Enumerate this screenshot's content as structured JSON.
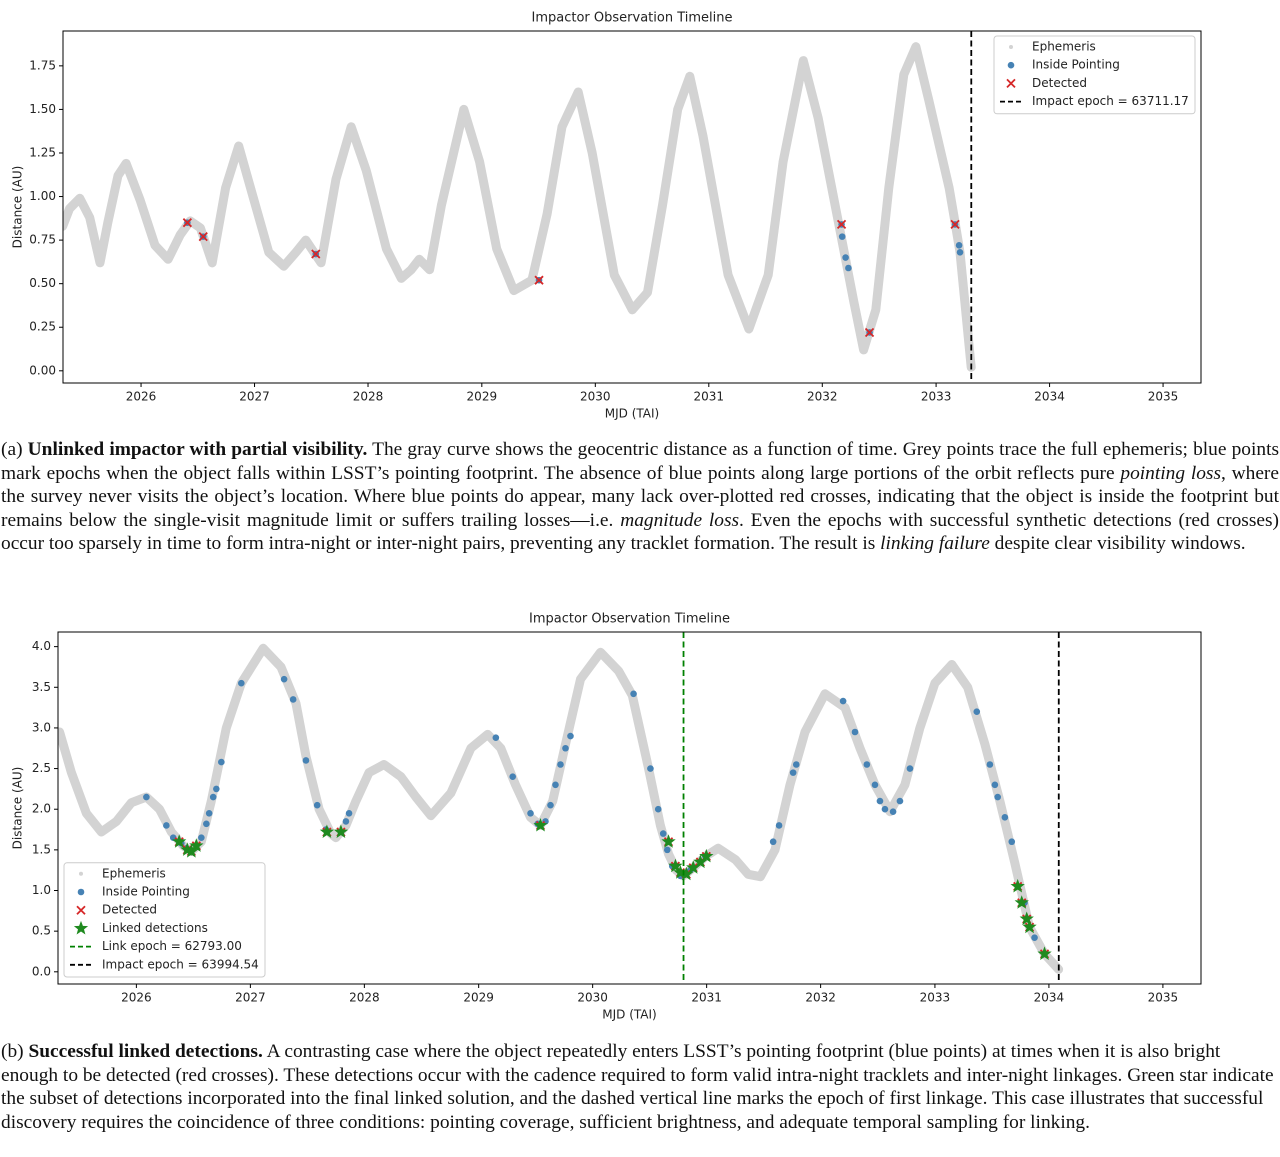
{
  "chart_data": [
    {
      "type": "scatter",
      "title": "Impactor Observation Timeline",
      "x_label": "MJD (TAI)",
      "y_label": "Distance (AU)",
      "xlim": [
        60790,
        64450
      ],
      "ylim": [
        -0.07,
        1.95
      ],
      "xticks": [
        {
          "value": 61041,
          "label": "2026"
        },
        {
          "value": 61406,
          "label": "2027"
        },
        {
          "value": 61771,
          "label": "2028"
        },
        {
          "value": 62137,
          "label": "2029"
        },
        {
          "value": 62502,
          "label": "2030"
        },
        {
          "value": 62867,
          "label": "2031"
        },
        {
          "value": 63232,
          "label": "2032"
        },
        {
          "value": 63598,
          "label": "2033"
        },
        {
          "value": 63963,
          "label": "2034"
        },
        {
          "value": 64328,
          "label": "2035"
        }
      ],
      "yticks": [
        {
          "value": 0,
          "label": "0.00"
        },
        {
          "value": 0.25,
          "label": "0.25"
        },
        {
          "value": 0.5,
          "label": "0.50"
        },
        {
          "value": 0.75,
          "label": "0.75"
        },
        {
          "value": 1,
          "label": "1.00"
        },
        {
          "value": 1.25,
          "label": "1.25"
        },
        {
          "value": 1.5,
          "label": "1.50"
        },
        {
          "value": 1.75,
          "label": "1.75"
        }
      ],
      "legend": "upper right",
      "series": [
        {
          "name": "Ephemeris",
          "color": "#d3d3d3",
          "marker": ".",
          "x": [
            60789,
            60811,
            60844,
            60876,
            60909,
            60934,
            60967,
            60993,
            61038,
            61086,
            61128,
            61167,
            61199,
            61232,
            61270,
            61313,
            61355,
            61393,
            61452,
            61500,
            61539,
            61571,
            61597,
            61620,
            61668,
            61717,
            61765,
            61830,
            61878,
            61910,
            61936,
            61969,
            62007,
            62079,
            62130,
            62185,
            62240,
            62298,
            62347,
            62395,
            62447,
            62492,
            62563,
            62621,
            62670,
            62718,
            62767,
            62806,
            62848,
            62929,
            62996,
            63058,
            63106,
            63171,
            63219,
            63284,
            63333,
            63365,
            63404,
            63446,
            63494,
            63533,
            63575,
            63640,
            63659,
            63675,
            63711
          ],
          "values": [
            0.83,
            0.93,
            0.99,
            0.88,
            0.62,
            0.85,
            1.12,
            1.19,
            0.98,
            0.72,
            0.64,
            0.78,
            0.86,
            0.82,
            0.62,
            1.05,
            1.29,
            1.05,
            0.68,
            0.6,
            0.68,
            0.75,
            0.68,
            0.62,
            1.1,
            1.4,
            1.15,
            0.7,
            0.53,
            0.58,
            0.64,
            0.58,
            0.95,
            1.5,
            1.2,
            0.7,
            0.46,
            0.52,
            0.9,
            1.4,
            1.6,
            1.25,
            0.55,
            0.35,
            0.45,
            0.95,
            1.5,
            1.69,
            1.35,
            0.55,
            0.24,
            0.55,
            1.2,
            1.78,
            1.45,
            0.85,
            0.4,
            0.12,
            0.35,
            1.05,
            1.7,
            1.86,
            1.55,
            1.05,
            0.85,
            0.68,
            0.02
          ]
        },
        {
          "name": "Inside Pointing",
          "color": "#4682b4",
          "marker": "o",
          "x": [
            61190,
            61241,
            61603,
            62321,
            63294,
            63296,
            63307,
            63316,
            63384,
            63659,
            63672,
            63675
          ],
          "values": [
            0.85,
            0.77,
            0.67,
            0.52,
            0.84,
            0.77,
            0.65,
            0.59,
            0.22,
            0.84,
            0.72,
            0.68
          ]
        },
        {
          "name": "Detected",
          "color": "#d62728",
          "marker": "x",
          "x": [
            61190,
            61241,
            61603,
            62321,
            63294,
            63384,
            63659
          ],
          "values": [
            0.85,
            0.77,
            0.67,
            0.52,
            0.84,
            0.22,
            0.84
          ]
        }
      ],
      "vlines": [
        {
          "label": "Impact epoch = 63711.17",
          "value": 63711.17,
          "color": "#000000",
          "style": "dashed"
        }
      ]
    },
    {
      "type": "scatter",
      "title": "Impactor Observation Timeline",
      "x_label": "MJD (TAI)",
      "y_label": "Distance (AU)",
      "xlim": [
        60790,
        64450
      ],
      "ylim": [
        -0.15,
        4.18
      ],
      "xticks": [
        {
          "value": 61041,
          "label": "2026"
        },
        {
          "value": 61406,
          "label": "2027"
        },
        {
          "value": 61771,
          "label": "2028"
        },
        {
          "value": 62137,
          "label": "2029"
        },
        {
          "value": 62502,
          "label": "2030"
        },
        {
          "value": 62867,
          "label": "2031"
        },
        {
          "value": 63232,
          "label": "2032"
        },
        {
          "value": 63598,
          "label": "2033"
        },
        {
          "value": 63963,
          "label": "2034"
        },
        {
          "value": 64328,
          "label": "2035"
        }
      ],
      "yticks": [
        {
          "value": 0,
          "label": "0.0"
        },
        {
          "value": 0.5,
          "label": "0.5"
        },
        {
          "value": 1,
          "label": "1.0"
        },
        {
          "value": 1.5,
          "label": "1.5"
        },
        {
          "value": 2,
          "label": "2.0"
        },
        {
          "value": 2.5,
          "label": "2.5"
        },
        {
          "value": 3,
          "label": "3.0"
        },
        {
          "value": 3.5,
          "label": "3.5"
        },
        {
          "value": 4,
          "label": "4.0"
        }
      ],
      "legend": "lower left",
      "series": [
        {
          "name": "Ephemeris",
          "color": "#d3d3d3",
          "marker": ".",
          "x": [
            60795,
            60833,
            60881,
            60929,
            60977,
            61025,
            61073,
            61115,
            61153,
            61191,
            61217,
            61249,
            61281,
            61329,
            61377,
            61447,
            61504,
            61552,
            61584,
            61626,
            61664,
            61680,
            61712,
            61744,
            61786,
            61834,
            61888,
            61936,
            61984,
            62048,
            62112,
            62166,
            62208,
            62255,
            62303,
            62335,
            62374,
            62415,
            62463,
            62527,
            62585,
            62629,
            62681,
            62719,
            62745,
            62770,
            62792,
            62824,
            62863,
            62904,
            62959,
            63000,
            63039,
            63086,
            63134,
            63182,
            63246,
            63310,
            63358,
            63406,
            63454,
            63502,
            63550,
            63598,
            63652,
            63703,
            63758,
            63806,
            63853,
            63901,
            63949,
            63994
          ],
          "values": [
            2.95,
            2.45,
            1.95,
            1.72,
            1.85,
            2.08,
            2.15,
            2.0,
            1.72,
            1.55,
            1.48,
            1.6,
            2.1,
            3.0,
            3.55,
            3.98,
            3.75,
            3.3,
            2.65,
            2.0,
            1.7,
            1.65,
            1.8,
            2.1,
            2.45,
            2.55,
            2.4,
            2.15,
            1.92,
            2.2,
            2.75,
            2.92,
            2.75,
            2.3,
            1.9,
            1.8,
            2.1,
            2.8,
            3.6,
            3.93,
            3.7,
            3.4,
            2.5,
            1.8,
            1.45,
            1.25,
            1.18,
            1.28,
            1.42,
            1.52,
            1.38,
            1.2,
            1.17,
            1.5,
            2.3,
            2.95,
            3.42,
            3.25,
            2.75,
            2.3,
            1.97,
            2.3,
            3.0,
            3.55,
            3.78,
            3.5,
            2.8,
            2.1,
            1.35,
            0.55,
            0.22,
            0.03
          ]
        },
        {
          "name": "Inside Pointing",
          "color": "#4682b4",
          "marker": "o",
          "x": [
            61073,
            61137,
            61159,
            61185,
            61201,
            61233,
            61249,
            61265,
            61274,
            61287,
            61297,
            61313,
            61377,
            61514,
            61543,
            61584,
            61620,
            61648,
            61712,
            61722,
            62192,
            62246,
            62303,
            62326,
            62351,
            62367,
            62383,
            62399,
            62415,
            62431,
            62633,
            62687,
            62712,
            62728,
            62741,
            62757,
            62783,
            62815,
            62847,
            62863,
            63080,
            63099,
            63144,
            63154,
            63304,
            63342,
            63380,
            63406,
            63422,
            63438,
            63464,
            63486,
            63518,
            63732,
            63774,
            63790,
            63799,
            63822,
            63844,
            63885,
            63917,
            63949
          ],
          "values": [
            2.15,
            1.8,
            1.65,
            1.58,
            1.52,
            1.55,
            1.65,
            1.82,
            1.95,
            2.15,
            2.25,
            2.58,
            3.55,
            3.6,
            3.35,
            2.6,
            2.05,
            1.75,
            1.85,
            1.95,
            2.88,
            2.4,
            1.95,
            1.82,
            1.85,
            2.05,
            2.3,
            2.55,
            2.75,
            2.9,
            3.42,
            2.5,
            2.0,
            1.7,
            1.5,
            1.3,
            1.18,
            1.25,
            1.35,
            1.42,
            1.6,
            1.8,
            2.45,
            2.55,
            3.33,
            2.95,
            2.55,
            2.3,
            2.1,
            2.0,
            1.97,
            2.1,
            2.5,
            3.2,
            2.55,
            2.3,
            2.15,
            1.9,
            1.6,
            0.85,
            0.42,
            0.22
          ]
        },
        {
          "name": "Detected",
          "color": "#d62728",
          "marker": "x",
          "x": [
            61178,
            61204,
            61217,
            61233,
            61651,
            61696,
            62335,
            62745,
            62767,
            62783,
            62802,
            62824,
            62847,
            62866,
            63863,
            63876,
            63892,
            63901,
            63949
          ],
          "values": [
            1.6,
            1.5,
            1.48,
            1.55,
            1.72,
            1.72,
            1.8,
            1.6,
            1.3,
            1.22,
            1.2,
            1.28,
            1.35,
            1.42,
            1.05,
            0.85,
            0.65,
            0.55,
            0.22
          ]
        },
        {
          "name": "Linked detections",
          "color": "#1f8a1f",
          "marker": "*",
          "x": [
            61178,
            61204,
            61217,
            61233,
            61651,
            61696,
            62335,
            62745,
            62767,
            62783,
            62802,
            62824,
            62847,
            62866,
            63863,
            63876,
            63892,
            63901,
            63949
          ],
          "values": [
            1.6,
            1.5,
            1.48,
            1.55,
            1.72,
            1.72,
            1.8,
            1.6,
            1.3,
            1.22,
            1.2,
            1.28,
            1.35,
            1.42,
            1.05,
            0.85,
            0.65,
            0.55,
            0.22
          ]
        }
      ],
      "vlines": [
        {
          "label": "Link epoch = 62793.00",
          "value": 62793.0,
          "color": "#008000",
          "style": "dashed"
        },
        {
          "label": "Impact epoch = 63994.54",
          "value": 63994.54,
          "color": "#000000",
          "style": "dashed"
        }
      ]
    }
  ],
  "captions": [
    {
      "label": "(a)",
      "title": "Unlinked impactor with partial visibility.",
      "align": "justify",
      "segments": [
        {
          "text": " The gray curve shows the geocentric distance as a function of time. Grey points trace the full ephemeris; blue points mark epochs when the object falls within LSST’s pointing footprint. The absence of blue points along large portions of the orbit reflects pure "
        },
        {
          "text": "pointing loss",
          "style": "italic"
        },
        {
          "text": ", where the survey never visits the object’s location. Where blue points do appear, many lack over-plotted red crosses, indicating that the object is inside the footprint but remains below the single-visit magnitude limit or suffers trailing losses—i.e. "
        },
        {
          "text": "magnitude loss",
          "style": "italic"
        },
        {
          "text": ". Even the epochs with successful synthetic detections (red crosses) occur too sparsely in time to form intra-night or inter-night pairs, preventing any tracklet formation. The result is "
        },
        {
          "text": "linking failure",
          "style": "italic"
        },
        {
          "text": " despite clear visibility windows."
        }
      ]
    },
    {
      "label": "(b)",
      "title": "Successful linked detections.",
      "align": "left",
      "segments": [
        {
          "text": " A contrasting case where the object repeatedly enters LSST’s pointing footprint (blue points) at times when it is also bright enough to be detected (red crosses). These detections occur with the cadence required to form valid intra-night tracklets and inter-night linkages. Green star indicate the subset of detections incorporated into the final linked solution, and the dashed vertical line marks the epoch of first linkage. This case illustrates that successful discovery requires the coincidence of three conditions: pointing coverage, sufficient brightness, and adequate temporal sampling for linking."
        }
      ]
    }
  ]
}
